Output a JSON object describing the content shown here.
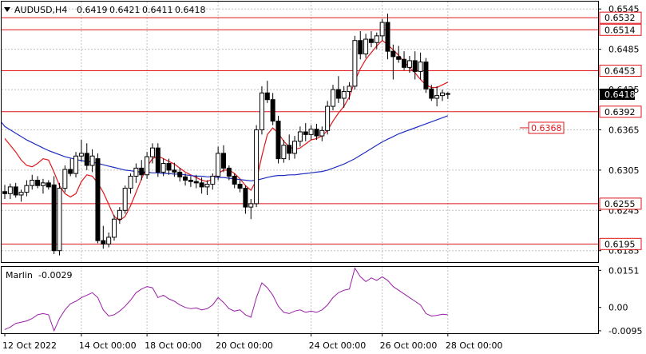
{
  "header": {
    "symbol": "AUDUSD,H4",
    "open": "0.6419",
    "high": "0.6421",
    "low": "0.6411",
    "close": "0.6418"
  },
  "indicator": {
    "name": "Marlin",
    "value": "-0.0029",
    "axis_labels": [
      "0.0151",
      "0.00",
      "-0.0095"
    ]
  },
  "colors": {
    "background": "#ffffff",
    "grid": "#c0c0c0",
    "bull_candle": "#ffffff",
    "bear_candle": "#000000",
    "level_lines": "#e0161b",
    "fast_ma": "#e0161b",
    "slow_ma": "#1f2fc0",
    "oscillator": "#9b1fa8",
    "current_price_bg": "#000000"
  },
  "chart_data": {
    "type": "candlestick",
    "symbol": "AUDUSD",
    "timeframe": "H4",
    "price_axis": {
      "ylim": [
        0.6168,
        0.6556
      ],
      "tick_labels": [
        "0.6545",
        "0.6485",
        "0.6425",
        "0.6365",
        "0.6305",
        "0.6245",
        "0.6185"
      ],
      "grid": true
    },
    "time_axis": {
      "tick_labels": [
        "12 Oct 2022",
        "14 Oct 00:00",
        "18 Oct 00:00",
        "20 Oct 00:00",
        "24 Oct 00:00",
        "26 Oct 00:00",
        "28 Oct 00:00"
      ]
    },
    "horizontal_levels": [
      {
        "value": 0.6532,
        "label": "0.6532"
      },
      {
        "value": 0.6514,
        "label": "0.6514"
      },
      {
        "value": 0.6453,
        "label": "0.6453"
      },
      {
        "value": 0.6392,
        "label": "0.6392"
      },
      {
        "value": 0.6255,
        "label": "0.6255"
      },
      {
        "value": 0.6195,
        "label": "0.6195"
      }
    ],
    "target_label": {
      "value": 0.6368,
      "label": "0.6368"
    },
    "current_price": {
      "value": 0.6418,
      "label": "0.6418"
    },
    "candles": [
      [
        0.6273,
        0.6283,
        0.6262,
        0.627
      ],
      [
        0.627,
        0.6285,
        0.6262,
        0.628
      ],
      [
        0.628,
        0.6286,
        0.6264,
        0.6268
      ],
      [
        0.6268,
        0.6276,
        0.6258,
        0.6272
      ],
      [
        0.6272,
        0.629,
        0.6266,
        0.6282
      ],
      [
        0.6282,
        0.6298,
        0.6276,
        0.629
      ],
      [
        0.629,
        0.6296,
        0.6278,
        0.6282
      ],
      [
        0.6282,
        0.6292,
        0.627,
        0.6286
      ],
      [
        0.6286,
        0.629,
        0.6276,
        0.628
      ],
      [
        0.6283,
        0.6296,
        0.618,
        0.6185
      ],
      [
        0.6185,
        0.6286,
        0.6178,
        0.6278
      ],
      [
        0.6278,
        0.6312,
        0.6272,
        0.6306
      ],
      [
        0.6306,
        0.6322,
        0.6296,
        0.63
      ],
      [
        0.63,
        0.6332,
        0.6294,
        0.6326
      ],
      [
        0.6326,
        0.635,
        0.6318,
        0.633
      ],
      [
        0.633,
        0.6345,
        0.6305,
        0.6312
      ],
      [
        0.6312,
        0.6336,
        0.6302,
        0.6326
      ],
      [
        0.6322,
        0.633,
        0.6196,
        0.62
      ],
      [
        0.62,
        0.6222,
        0.6188,
        0.6195
      ],
      [
        0.6195,
        0.6212,
        0.619,
        0.6205
      ],
      [
        0.6205,
        0.6238,
        0.62,
        0.6232
      ],
      [
        0.6232,
        0.625,
        0.6225,
        0.6245
      ],
      [
        0.6245,
        0.6282,
        0.624,
        0.6278
      ],
      [
        0.6278,
        0.63,
        0.627,
        0.6296
      ],
      [
        0.6296,
        0.6315,
        0.6286,
        0.6308
      ],
      [
        0.6308,
        0.632,
        0.629,
        0.6298
      ],
      [
        0.6298,
        0.6332,
        0.6292,
        0.6325
      ],
      [
        0.6325,
        0.6345,
        0.6315,
        0.6338
      ],
      [
        0.6338,
        0.6345,
        0.6295,
        0.6302
      ],
      [
        0.6302,
        0.6322,
        0.6296,
        0.6315
      ],
      [
        0.6315,
        0.6322,
        0.6298,
        0.6305
      ],
      [
        0.6305,
        0.6316,
        0.6295,
        0.6302
      ],
      [
        0.6302,
        0.6308,
        0.6288,
        0.6295
      ],
      [
        0.6295,
        0.63,
        0.6282,
        0.629
      ],
      [
        0.629,
        0.6296,
        0.628,
        0.6288
      ],
      [
        0.6288,
        0.6298,
        0.6278,
        0.6286
      ],
      [
        0.6286,
        0.6294,
        0.627,
        0.628
      ],
      [
        0.628,
        0.629,
        0.6268,
        0.6284
      ],
      [
        0.6284,
        0.63,
        0.6276,
        0.6296
      ],
      [
        0.6296,
        0.634,
        0.629,
        0.633
      ],
      [
        0.633,
        0.6342,
        0.6302,
        0.6308
      ],
      [
        0.6308,
        0.6312,
        0.629,
        0.6296
      ],
      [
        0.6296,
        0.63,
        0.6278,
        0.6284
      ],
      [
        0.6284,
        0.629,
        0.6272,
        0.6278
      ],
      [
        0.6278,
        0.6282,
        0.624,
        0.625
      ],
      [
        0.625,
        0.6262,
        0.6232,
        0.6255
      ],
      [
        0.6255,
        0.6372,
        0.625,
        0.6365
      ],
      [
        0.6365,
        0.643,
        0.6358,
        0.642
      ],
      [
        0.642,
        0.6438,
        0.6405,
        0.641
      ],
      [
        0.641,
        0.642,
        0.6372,
        0.6378
      ],
      [
        0.6378,
        0.6386,
        0.6315,
        0.6322
      ],
      [
        0.6322,
        0.635,
        0.6316,
        0.6342
      ],
      [
        0.6342,
        0.6358,
        0.632,
        0.633
      ],
      [
        0.633,
        0.6356,
        0.6322,
        0.6348
      ],
      [
        0.6348,
        0.637,
        0.634,
        0.6362
      ],
      [
        0.6362,
        0.6375,
        0.6348,
        0.6358
      ],
      [
        0.6358,
        0.6372,
        0.635,
        0.6366
      ],
      [
        0.6366,
        0.6374,
        0.635,
        0.6356
      ],
      [
        0.6356,
        0.637,
        0.6348,
        0.6364
      ],
      [
        0.6364,
        0.6408,
        0.6358,
        0.64
      ],
      [
        0.64,
        0.6432,
        0.6394,
        0.6425
      ],
      [
        0.6425,
        0.6445,
        0.6405,
        0.6412
      ],
      [
        0.6412,
        0.643,
        0.6398,
        0.6422
      ],
      [
        0.6422,
        0.6436,
        0.641,
        0.643
      ],
      [
        0.643,
        0.6505,
        0.6425,
        0.6498
      ],
      [
        0.6498,
        0.6512,
        0.647,
        0.6478
      ],
      [
        0.6478,
        0.6508,
        0.6472,
        0.65
      ],
      [
        0.65,
        0.6512,
        0.6488,
        0.6495
      ],
      [
        0.6495,
        0.651,
        0.6485,
        0.6505
      ],
      [
        0.6505,
        0.653,
        0.6498,
        0.6525
      ],
      [
        0.6525,
        0.6538,
        0.647,
        0.6482
      ],
      [
        0.6482,
        0.6492,
        0.644,
        0.6474
      ],
      [
        0.6474,
        0.649,
        0.6465,
        0.647
      ],
      [
        0.647,
        0.6482,
        0.6454,
        0.6458
      ],
      [
        0.6458,
        0.6475,
        0.645,
        0.6468
      ],
      [
        0.6468,
        0.6482,
        0.644,
        0.6452
      ],
      [
        0.6452,
        0.648,
        0.644,
        0.6466
      ],
      [
        0.6466,
        0.6472,
        0.642,
        0.6426
      ],
      [
        0.6426,
        0.6432,
        0.6408,
        0.6412
      ],
      [
        0.6412,
        0.643,
        0.64,
        0.6416
      ],
      [
        0.6416,
        0.6425,
        0.6408,
        0.642
      ],
      [
        0.6419,
        0.6421,
        0.6411,
        0.6418
      ]
    ],
    "series": [
      {
        "values": [
          0.6352,
          0.6342,
          0.6332,
          0.632,
          0.6312,
          0.631,
          0.6315,
          0.6322,
          0.632,
          0.6302,
          0.6282,
          0.627,
          0.6265,
          0.627,
          0.6288,
          0.6298,
          0.6296,
          0.6286,
          0.6272,
          0.6254,
          0.6236,
          0.623,
          0.6236,
          0.6252,
          0.6272,
          0.6292,
          0.631,
          0.6322,
          0.6326,
          0.6322,
          0.6318,
          0.6314,
          0.6308,
          0.6302,
          0.6298,
          0.6294,
          0.629,
          0.6288,
          0.6292,
          0.63,
          0.6305,
          0.6305,
          0.63,
          0.6292,
          0.6282,
          0.6275,
          0.629,
          0.6326,
          0.6358,
          0.6368,
          0.636,
          0.6348,
          0.634,
          0.6336,
          0.6338,
          0.6344,
          0.635,
          0.6352,
          0.6356,
          0.6364,
          0.6378,
          0.639,
          0.64,
          0.6414,
          0.6438,
          0.6456,
          0.647,
          0.648,
          0.649,
          0.6498,
          0.6492,
          0.6484,
          0.6476,
          0.6466,
          0.6458,
          0.645,
          0.644,
          0.6432,
          0.6428,
          0.6428,
          0.6432,
          0.6436
        ]
      },
      {
        "values": [
          0.637,
          0.6365,
          0.636,
          0.6355,
          0.635,
          0.6346,
          0.6342,
          0.6338,
          0.6334,
          0.6331,
          0.6328,
          0.6325,
          0.6323,
          0.6321,
          0.6319,
          0.6318,
          0.6317,
          0.6315,
          0.6313,
          0.6311,
          0.6309,
          0.6307,
          0.6305,
          0.6304,
          0.6303,
          0.6302,
          0.6302,
          0.6301,
          0.6301,
          0.63,
          0.63,
          0.6299,
          0.6299,
          0.6298,
          0.6297,
          0.6296,
          0.6296,
          0.6295,
          0.6295,
          0.6294,
          0.6294,
          0.6293,
          0.6292,
          0.6291,
          0.629,
          0.6289,
          0.629,
          0.6292,
          0.6294,
          0.6296,
          0.6297,
          0.6297,
          0.6298,
          0.6298,
          0.6299,
          0.63,
          0.6301,
          0.6302,
          0.6303,
          0.6305,
          0.6308,
          0.6311,
          0.6314,
          0.6318,
          0.6322,
          0.6327,
          0.6332,
          0.6337,
          0.6342,
          0.6347,
          0.6351,
          0.6355,
          0.6359,
          0.6362,
          0.6365,
          0.6368,
          0.6371,
          0.6374,
          0.6377,
          0.638,
          0.6383,
          0.6386
        ]
      }
    ],
    "oscillator": {
      "name": "Marlin",
      "ylim": [
        -0.0105,
        0.0165
      ],
      "tick_labels": [
        "0.0151",
        "0.00",
        "-0.0095"
      ],
      "values": [
        -0.009,
        -0.008,
        -0.0065,
        -0.006,
        -0.0055,
        -0.0045,
        -0.003,
        -0.0025,
        -0.003,
        -0.0095,
        -0.0045,
        -0.001,
        0.0015,
        0.0025,
        0.004,
        0.005,
        0.006,
        0.004,
        -0.001,
        -0.0035,
        -0.003,
        -0.0015,
        0.0005,
        0.003,
        0.006,
        0.0075,
        0.0085,
        0.008,
        0.004,
        0.005,
        0.0035,
        0.0025,
        0.001,
        0.0,
        -0.0005,
        -0.0002,
        -0.001,
        -0.0005,
        0.001,
        0.004,
        0.002,
        -0.0005,
        -0.0015,
        -0.001,
        -0.003,
        -0.004,
        0.004,
        0.01,
        0.008,
        0.005,
        0.0005,
        -0.002,
        -0.0025,
        -0.0015,
        -0.001,
        -0.002,
        -0.0015,
        -0.002,
        -0.001,
        0.001,
        0.004,
        0.006,
        0.007,
        0.0075,
        0.016,
        0.0125,
        0.0105,
        0.012,
        0.011,
        0.0125,
        0.011,
        0.0085,
        0.007,
        0.0055,
        0.004,
        0.0025,
        0.001,
        -0.0025,
        -0.0035,
        -0.0032,
        -0.0028,
        -0.003
      ]
    }
  }
}
